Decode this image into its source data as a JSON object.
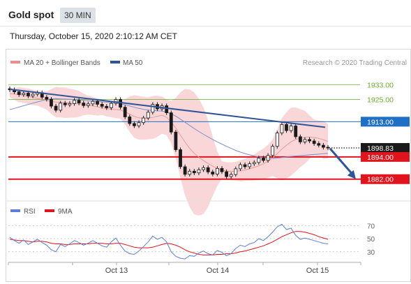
{
  "header": {
    "title": "Gold spot",
    "timeframe": "30 MIN",
    "datetime": "Thursday, October 15, 2020 2:10:12 AM CET"
  },
  "legend": {
    "ma20": "MA 20 + Bollinger Bands",
    "ma50": "MA 50",
    "rsi": "RSI",
    "ma9": "9MA",
    "credit": "Research © 2020 Trading Central"
  },
  "colors": {
    "green": "#6aaa2c",
    "blue": "#1f6fc5",
    "red": "#e0141c",
    "dark": "#1a1a1a",
    "trend": "#2f5597",
    "rsi": "#5b7fd6",
    "band": "#f7c9cb"
  },
  "chart_data": [
    {
      "type": "line",
      "title": "Gold spot 30 MIN",
      "x_ticks": [
        "Oct 13",
        "Oct 14",
        "Oct 15"
      ],
      "ylim": [
        1874,
        1941
      ],
      "series": [
        {
          "name": "Price",
          "values": [
            1930.2,
            1929.1,
            1927.6,
            1928.4,
            1926.9,
            1927.8,
            1928.6,
            1926.2,
            1925.1,
            1921.4,
            1919.2,
            1923.0,
            1922.1,
            1922.8,
            1924.5,
            1923.1,
            1921.7,
            1922.6,
            1924.0,
            1922.4,
            1921.3,
            1920.5,
            1922.9,
            1925.0,
            1920.8,
            1915.6,
            1912.0,
            1910.8,
            1912.5,
            1915.0,
            1918.1,
            1922.3,
            1919.9,
            1921.6,
            1917.8,
            1907.4,
            1897.9,
            1888.7,
            1884.6,
            1886.3,
            1885.4,
            1887.1,
            1888.2,
            1885.9,
            1884.7,
            1887.8,
            1886.0,
            1883.4,
            1884.5,
            1887.6,
            1889.8,
            1888.7,
            1890.3,
            1891.0,
            1893.4,
            1892.1,
            1894.8,
            1899.7,
            1906.9,
            1911.5,
            1908.2,
            1910.7,
            1904.9,
            1902.1,
            1903.4,
            1902.6,
            1901.2,
            1900.3,
            1899.2,
            1898.83
          ]
        },
        {
          "name": "MA 20",
          "values": [
            1928.1,
            1927.9,
            1927.6,
            1927.2,
            1926.7,
            1926.1,
            1925.6,
            1925.0,
            1924.4,
            1923.9,
            1923.6,
            1923.4,
            1923.2,
            1923.0,
            1922.8,
            1922.6,
            1922.3,
            1921.9,
            1921.5,
            1921.0,
            1920.5,
            1920.1,
            1919.7,
            1919.6,
            1919.2,
            1918.3,
            1917.1,
            1915.8,
            1915.1,
            1914.9,
            1914.8,
            1915.3,
            1915.9,
            1916.5,
            1915.4,
            1912.8,
            1909.6,
            1905.8,
            1902.0,
            1898.7,
            1895.9,
            1893.9,
            1892.0,
            1890.4,
            1889.0,
            1887.7,
            1886.9,
            1886.4,
            1886.2,
            1886.3,
            1886.5,
            1887.0,
            1887.6,
            1888.3,
            1889.2,
            1890.3,
            1891.7,
            1893.5,
            1895.7,
            1898.2,
            1900.3,
            1902.2,
            1903.4,
            1904.1,
            1904.6,
            1904.7,
            1904.5,
            1904.0,
            1903.2,
            1902.4
          ]
        },
        {
          "name": "MA 50",
          "values": [
            1919.5,
            1920.2,
            1920.9,
            1921.6,
            1922.3,
            1923.0,
            1923.7,
            1924.3,
            1924.9,
            1925.3,
            1925.4,
            1925.3,
            1925.2,
            1925.1,
            1924.9,
            1924.7,
            1924.5,
            1924.3,
            1924.1,
            1923.9,
            1923.7,
            1923.5,
            1923.2,
            1923.0,
            1922.6,
            1922.1,
            1921.5,
            1920.8,
            1920.2,
            1919.7,
            1919.3,
            1919.1,
            1918.9,
            1918.7,
            1918.2,
            1917.2,
            1916.0,
            1914.4,
            1912.7,
            1911.0,
            1909.3,
            1907.7,
            1906.2,
            1904.8,
            1903.4,
            1902.1,
            1900.9,
            1899.7,
            1898.6,
            1897.5,
            1896.6,
            1895.8,
            1895.1,
            1894.5,
            1894.0,
            1893.6,
            1893.3,
            1893.2,
            1893.4,
            1893.7,
            1894.0,
            1894.3,
            1894.5,
            1894.7,
            1894.9,
            1895.1,
            1895.3,
            1895.5,
            1895.7,
            1895.9
          ]
        }
      ],
      "levels": [
        {
          "label": "1933.00",
          "value": 1933.0,
          "kind": "resistance-green"
        },
        {
          "label": "1925.00",
          "value": 1925.0,
          "kind": "resistance-green"
        },
        {
          "label": "1913.00",
          "value": 1913.0,
          "kind": "pivot-blue"
        },
        {
          "label": "1898.83",
          "value": 1898.83,
          "kind": "last-price"
        },
        {
          "label": "1894.00",
          "value": 1894.0,
          "kind": "support-red"
        },
        {
          "label": "1882.00",
          "value": 1882.0,
          "kind": "support-red"
        }
      ],
      "trendline": {
        "from": 1930.5,
        "to": 1910.0
      },
      "projection": {
        "from": 1898.5,
        "to": 1882.0
      },
      "legend_position": "top-left"
    },
    {
      "type": "line",
      "title": "RSI",
      "ylim": [
        18,
        82
      ],
      "y_ticks": [
        70,
        50,
        30
      ],
      "series": [
        {
          "name": "RSI",
          "values": [
            52,
            47,
            43,
            48,
            41,
            45,
            49,
            44,
            40,
            33,
            30,
            41,
            38,
            42,
            47,
            44,
            40,
            43,
            47,
            43,
            39,
            37,
            45,
            51,
            40,
            31,
            27,
            26,
            31,
            38,
            45,
            54,
            49,
            52,
            45,
            30,
            23,
            20,
            19,
            24,
            23,
            28,
            31,
            27,
            25,
            32,
            29,
            24,
            27,
            35,
            40,
            38,
            42,
            44,
            50,
            47,
            53,
            60,
            68,
            72,
            64,
            66,
            55,
            49,
            51,
            49,
            47,
            45,
            43,
            42
          ]
        },
        {
          "name": "9MA",
          "values": [
            49,
            48,
            47,
            47,
            46,
            45,
            46,
            46,
            45,
            43,
            42,
            42,
            41,
            41,
            42,
            42,
            42,
            42,
            43,
            43,
            43,
            42,
            42,
            43,
            43,
            41,
            39,
            37,
            36,
            36,
            36,
            37,
            39,
            41,
            43,
            42,
            40,
            37,
            33,
            30,
            28,
            26,
            25,
            25,
            25,
            26,
            26,
            27,
            27,
            28,
            30,
            31,
            33,
            35,
            37,
            39,
            42,
            45,
            49,
            53,
            56,
            59,
            61,
            61,
            60,
            58,
            56,
            53,
            51,
            49
          ]
        }
      ]
    }
  ]
}
